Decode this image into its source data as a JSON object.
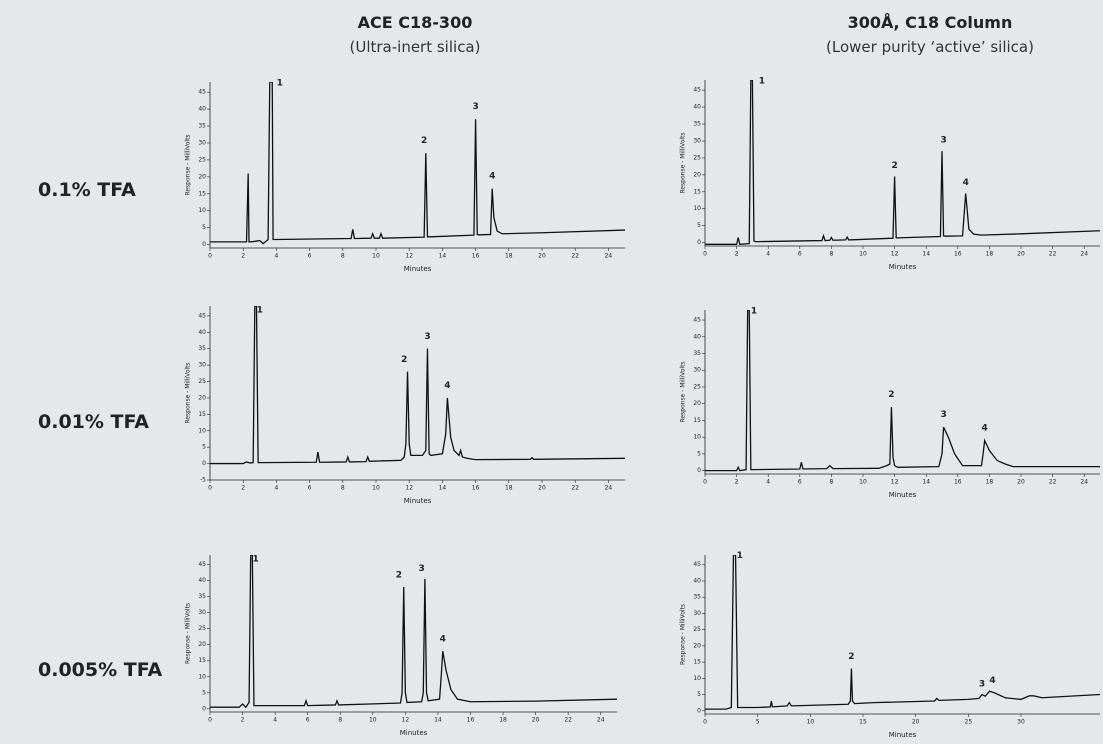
{
  "column_headers": [
    {
      "title": "ACE C18-300",
      "subtitle": "(Ultra-inert silica)"
    },
    {
      "title": "300Å, C18 Column",
      "subtitle": "(Lower purity ‘active’ silica)"
    }
  ],
  "row_labels": [
    "0.1% TFA",
    "0.01% TFA",
    "0.005% TFA"
  ],
  "chart_data": [
    {
      "type": "line",
      "xlabel": "Minutes",
      "ylabel": "Response - MilliVolts",
      "xlim": [
        0,
        25
      ],
      "ylim": [
        -1,
        48
      ],
      "xticks": [
        0,
        2,
        4,
        6,
        8,
        10,
        12,
        14,
        16,
        18,
        20,
        22,
        24
      ],
      "yticks": [
        0,
        5,
        10,
        15,
        20,
        25,
        30,
        35,
        40,
        45
      ],
      "x": [
        0,
        2.2,
        2.3,
        2.35,
        2.4,
        2.6,
        3.0,
        3.2,
        3.5,
        3.6,
        3.7,
        3.75,
        3.8,
        4.0,
        8.5,
        8.6,
        8.7,
        8.8,
        9.7,
        9.8,
        9.9,
        10.2,
        10.3,
        10.4,
        12.9,
        13.0,
        13.1,
        13.2,
        13.3,
        15.9,
        16.0,
        16.1,
        16.2,
        16.3,
        16.9,
        17.0,
        17.1,
        17.3,
        17.6,
        20,
        25
      ],
      "series": [
        {
          "color": "#111111",
          "values": [
            0.8,
            0.8,
            21,
            0.8,
            0.8,
            0.9,
            1.2,
            0.3,
            1.5,
            48,
            48,
            48,
            1.5,
            1.5,
            1.8,
            4.5,
            1.8,
            1.8,
            1.9,
            3.2,
            1.9,
            1.9,
            3.2,
            1.9,
            2.2,
            27,
            2.3,
            2.3,
            2.3,
            2.8,
            37,
            3,
            2.9,
            2.9,
            3,
            16.5,
            8,
            4,
            3.2,
            3.5,
            4.3
          ]
        }
      ],
      "annotations": [
        {
          "text": "1",
          "x": 4.2,
          "y": 47
        },
        {
          "text": "2",
          "x": 12.9,
          "y": 30
        },
        {
          "text": "3",
          "x": 16.0,
          "y": 40
        },
        {
          "text": "4",
          "x": 17.0,
          "y": 19.5
        }
      ]
    },
    {
      "type": "line",
      "xlabel": "Minutes",
      "ylabel": "Response - MilliVolts",
      "xlim": [
        0,
        25
      ],
      "ylim": [
        -1,
        48
      ],
      "xticks": [
        0,
        2,
        4,
        6,
        8,
        10,
        12,
        14,
        16,
        18,
        20,
        22,
        24
      ],
      "yticks": [
        0,
        5,
        10,
        15,
        20,
        25,
        30,
        35,
        40,
        45
      ],
      "x": [
        0,
        2,
        2.1,
        2.2,
        2.8,
        2.9,
        3.0,
        3.1,
        3.2,
        3.4,
        7.4,
        7.5,
        7.6,
        7.9,
        8,
        8.1,
        8.9,
        9.0,
        9.1,
        11.9,
        12.0,
        12.1,
        12.2,
        14.9,
        15.0,
        15.1,
        15.2,
        16.3,
        16.5,
        16.7,
        17,
        17.5,
        20,
        25
      ],
      "series": [
        {
          "color": "#111111",
          "values": [
            -0.5,
            -0.5,
            1.5,
            -0.5,
            -0.3,
            48,
            48,
            0.5,
            0.3,
            0.3,
            0.6,
            2,
            0.6,
            0.7,
            1.5,
            0.7,
            0.8,
            1.6,
            0.8,
            1.3,
            19.5,
            1.4,
            1.4,
            1.8,
            27,
            2,
            1.9,
            2,
            14.5,
            4,
            2.5,
            2.2,
            2.6,
            3.5
          ]
        }
      ],
      "annotations": [
        {
          "text": "1",
          "x": 3.6,
          "y": 47
        },
        {
          "text": "2",
          "x": 12,
          "y": 22
        },
        {
          "text": "3",
          "x": 15.1,
          "y": 29.5
        },
        {
          "text": "4",
          "x": 16.5,
          "y": 17
        }
      ]
    },
    {
      "type": "line",
      "xlabel": "Minutes",
      "ylabel": "Response - MilliVolts",
      "xlim": [
        0,
        25
      ],
      "ylim": [
        -5,
        48
      ],
      "xticks": [
        0,
        2,
        4,
        6,
        8,
        10,
        12,
        14,
        16,
        18,
        20,
        22,
        24
      ],
      "yticks": [
        -5,
        0,
        5,
        10,
        15,
        20,
        25,
        30,
        35,
        40,
        45
      ],
      "x": [
        0,
        2.0,
        2.2,
        2.4,
        2.6,
        2.7,
        2.8,
        2.9,
        3.0,
        6.4,
        6.5,
        6.6,
        6.7,
        8.2,
        8.3,
        8.4,
        9.4,
        9.5,
        9.6,
        11.5,
        11.7,
        11.8,
        11.9,
        12.0,
        12.1,
        12.8,
        13.0,
        13.1,
        13.2,
        13.3,
        14.0,
        14.2,
        14.3,
        14.5,
        14.7,
        15.0,
        15.1,
        15.2,
        15.5,
        16,
        19.3,
        19.4,
        19.5,
        25
      ],
      "series": [
        {
          "color": "#111111",
          "values": [
            0,
            0,
            0.5,
            0.2,
            0.3,
            48,
            48,
            0.3,
            0.3,
            0.4,
            3.5,
            0.4,
            0.4,
            0.5,
            2,
            0.5,
            0.6,
            2,
            0.7,
            1,
            2,
            6,
            28,
            6,
            2.5,
            2.5,
            4,
            35,
            3,
            2.5,
            3,
            9,
            20,
            8,
            4,
            2.5,
            4,
            2,
            1.6,
            1.2,
            1.3,
            1.8,
            1.3,
            1.6
          ]
        }
      ],
      "annotations": [
        {
          "text": "1",
          "x": 3.0,
          "y": 46
        },
        {
          "text": "2",
          "x": 11.7,
          "y": 31
        },
        {
          "text": "3",
          "x": 13.1,
          "y": 38
        },
        {
          "text": "4",
          "x": 14.3,
          "y": 23
        }
      ]
    },
    {
      "type": "line",
      "xlabel": "Minutes",
      "ylabel": "Response - MilliVolts",
      "xlim": [
        0,
        25
      ],
      "ylim": [
        -1,
        48
      ],
      "xticks": [
        0,
        2,
        4,
        6,
        8,
        10,
        12,
        14,
        16,
        18,
        20,
        22,
        24
      ],
      "yticks": [
        0,
        5,
        10,
        15,
        20,
        25,
        30,
        35,
        40,
        45
      ],
      "x": [
        0,
        2.0,
        2.1,
        2.2,
        2.6,
        2.7,
        2.8,
        2.9,
        3.0,
        6.0,
        6.1,
        6.2,
        7.7,
        7.9,
        8.1,
        11.0,
        11.5,
        11.7,
        11.8,
        11.9,
        12.0,
        12.2,
        14.8,
        15.0,
        15.1,
        15.4,
        15.8,
        16.3,
        17.5,
        17.6,
        17.7,
        18.0,
        18.5,
        19,
        19.5,
        25
      ],
      "series": [
        {
          "color": "#111111",
          "values": [
            0,
            0,
            1,
            0,
            0.3,
            48,
            48,
            0.3,
            0.3,
            0.5,
            2.5,
            0.5,
            0.6,
            1.5,
            0.6,
            0.7,
            1.5,
            2,
            19,
            4,
            1.5,
            1,
            1.2,
            5,
            13,
            10,
            5,
            1.5,
            1.5,
            5,
            9,
            6,
            3,
            2,
            1.2,
            1.2
          ]
        }
      ],
      "annotations": [
        {
          "text": "1",
          "x": 3.1,
          "y": 47
        },
        {
          "text": "2",
          "x": 11.8,
          "y": 22
        },
        {
          "text": "3",
          "x": 15.1,
          "y": 16
        },
        {
          "text": "4",
          "x": 17.7,
          "y": 12
        }
      ]
    },
    {
      "type": "line",
      "xlabel": "Minutes",
      "ylabel": "Response - MilliVolts",
      "xlim": [
        0,
        25
      ],
      "ylim": [
        -1,
        48
      ],
      "xticks": [
        0,
        2,
        4,
        6,
        8,
        10,
        12,
        14,
        16,
        18,
        20,
        22,
        24
      ],
      "yticks": [
        0,
        5,
        10,
        15,
        20,
        25,
        30,
        35,
        40,
        45
      ],
      "x": [
        0,
        1.8,
        2.0,
        2.2,
        2.4,
        2.5,
        2.6,
        2.7,
        2.8,
        5.8,
        5.9,
        6.0,
        7.7,
        7.8,
        7.9,
        11.7,
        11.8,
        11.9,
        12.0,
        12.1,
        13.0,
        13.1,
        13.2,
        13.3,
        13.4,
        14.1,
        14.2,
        14.3,
        14.5,
        14.8,
        15.2,
        16,
        20,
        25
      ],
      "series": [
        {
          "color": "#111111",
          "values": [
            0.5,
            0.5,
            1.5,
            0.5,
            2,
            48,
            48,
            1,
            1,
            1,
            2.5,
            1,
            1.2,
            2.5,
            1.2,
            1.8,
            5,
            38,
            5,
            2,
            2.2,
            5,
            40.5,
            5,
            2.5,
            3,
            10,
            18,
            12,
            6,
            3,
            2.2,
            2.4,
            3
          ]
        }
      ],
      "annotations": [
        {
          "text": "1",
          "x": 2.8,
          "y": 46
        },
        {
          "text": "2",
          "x": 11.6,
          "y": 41
        },
        {
          "text": "3",
          "x": 13.0,
          "y": 43
        },
        {
          "text": "4",
          "x": 14.3,
          "y": 21
        }
      ]
    },
    {
      "type": "line",
      "xlabel": "Minutes",
      "ylabel": "Response - MilliVolts",
      "xlim": [
        0,
        37.5
      ],
      "ylim": [
        -1,
        48
      ],
      "xticks": [
        0,
        5,
        10,
        15,
        20,
        25,
        30
      ],
      "yticks": [
        0,
        5,
        10,
        15,
        20,
        25,
        30,
        35,
        40,
        45
      ],
      "x": [
        0,
        2.0,
        2.5,
        2.7,
        2.9,
        3.1,
        3.3,
        5,
        6.2,
        6.3,
        6.4,
        7.8,
        8,
        8.2,
        13.6,
        13.8,
        13.9,
        14.0,
        14.2,
        16,
        21.8,
        22,
        22.2,
        25,
        26,
        26.3,
        26.6,
        27.0,
        27.5,
        28.5,
        30,
        30.8,
        31.2,
        32,
        37.5
      ],
      "series": [
        {
          "color": "#111111",
          "values": [
            0.5,
            0.5,
            1,
            48,
            48,
            1,
            1,
            1,
            1.2,
            3,
            1.2,
            1.5,
            2.5,
            1.5,
            2,
            3,
            13,
            3,
            2.2,
            2.5,
            3,
            3.8,
            3.2,
            3.5,
            3.8,
            5,
            4.5,
            6,
            5.5,
            4,
            3.5,
            4.6,
            4.6,
            4,
            5
          ]
        }
      ],
      "annotations": [
        {
          "text": "1",
          "x": 3.3,
          "y": 47
        },
        {
          "text": "2",
          "x": 13.9,
          "y": 16
        },
        {
          "text": "3",
          "x": 26.3,
          "y": 7.5
        },
        {
          "text": "4",
          "x": 27.3,
          "y": 8.5
        }
      ]
    }
  ]
}
